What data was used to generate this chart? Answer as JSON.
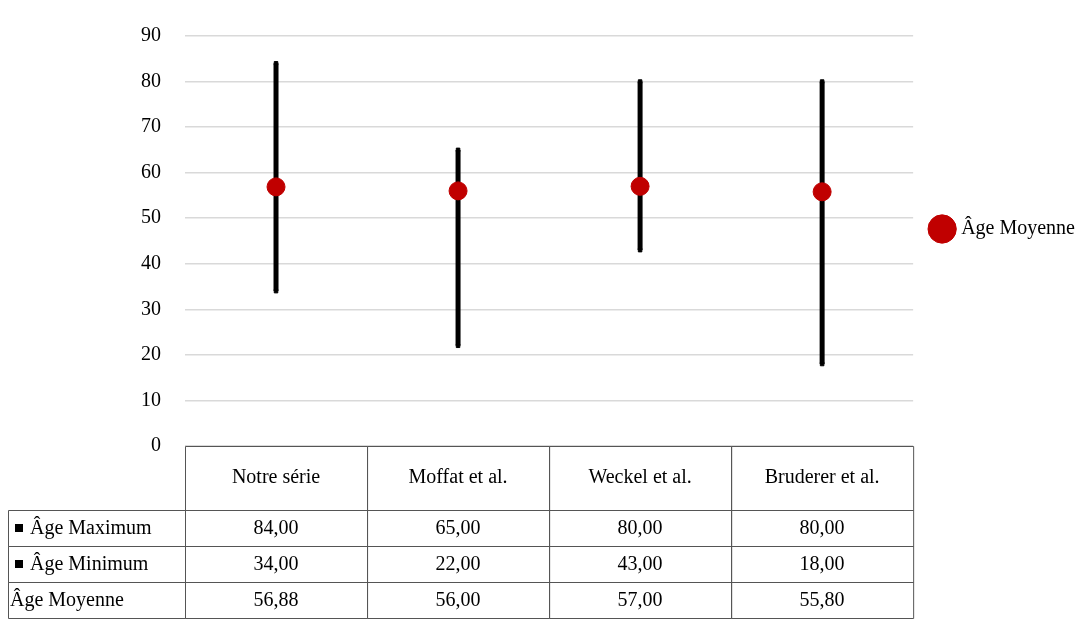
{
  "chart_data": {
    "type": "scatter",
    "categories": [
      "Notre série",
      "Moffat et al.",
      "Weckel et al.",
      "Bruderer et al."
    ],
    "series": [
      {
        "name": "Âge Maximum",
        "color": "#000000",
        "marker": "square",
        "values": [
          84,
          65,
          80,
          80
        ],
        "value_labels": [
          "84,00",
          "65,00",
          "80,00",
          "80,00"
        ]
      },
      {
        "name": "Âge Minimum",
        "color": "#000000",
        "marker": "square",
        "values": [
          34,
          22,
          43,
          18
        ],
        "value_labels": [
          "34,00",
          "22,00",
          "43,00",
          "18,00"
        ]
      },
      {
        "name": "Âge Moyenne",
        "color": "#c00000",
        "marker": "circle",
        "values": [
          56.88,
          56,
          57,
          55.8
        ],
        "value_labels": [
          "56,88",
          "56,00",
          "57,00",
          "55,80"
        ]
      }
    ],
    "ylim": [
      0,
      90
    ],
    "yticks": [
      0,
      10,
      20,
      30,
      40,
      50,
      60,
      70,
      80,
      90
    ],
    "grid": "y",
    "legend": "right",
    "tick_labels": "y"
  }
}
